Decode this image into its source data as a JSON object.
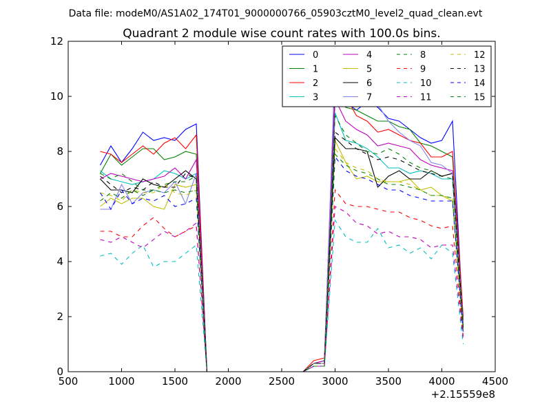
{
  "suptitle": "Data file: modeM0/AS1A02_174T01_9000000766_05903cztM0_level2_quad_clean.evt",
  "chart_data": {
    "type": "line",
    "title": "Quadrant 2 module wise count rates with 100.0s bins.",
    "xlabel": "",
    "ylabel": "",
    "x_offset_label": "+2.15559e8",
    "xlim": [
      500,
      4500
    ],
    "ylim": [
      0,
      12
    ],
    "xticks": [
      500,
      1000,
      1500,
      2000,
      2500,
      3000,
      3500,
      4000,
      4500
    ],
    "yticks": [
      0,
      2,
      4,
      6,
      8,
      10,
      12
    ],
    "grid": false,
    "legend_position": "top-right",
    "x": [
      800,
      900,
      1000,
      1100,
      1200,
      1300,
      1400,
      1500,
      1600,
      1700,
      1800,
      1900,
      2000,
      2100,
      2200,
      2300,
      2400,
      2500,
      2600,
      2700,
      2800,
      2900,
      3000,
      3100,
      3200,
      3300,
      3400,
      3500,
      3600,
      3700,
      3800,
      3900,
      4000,
      4100,
      4200
    ],
    "series": [
      {
        "name": "0",
        "color": "#0000ff",
        "dash": "solid",
        "values": [
          7.5,
          8.2,
          7.6,
          8.1,
          8.7,
          8.4,
          8.5,
          8.4,
          8.8,
          9.0,
          0,
          0,
          0,
          0,
          0,
          0,
          0,
          0,
          0,
          0,
          0.3,
          0.4,
          10.2,
          9.8,
          9.5,
          9.8,
          9.6,
          9.2,
          9.1,
          8.8,
          8.5,
          8.3,
          8.4,
          9.1,
          1.7
        ]
      },
      {
        "name": "1",
        "color": "#008000",
        "dash": "solid",
        "values": [
          7.2,
          7.9,
          7.5,
          7.8,
          8.1,
          8.1,
          7.7,
          7.8,
          8.0,
          7.9,
          0,
          0,
          0,
          0,
          0,
          0,
          0,
          0,
          0,
          0,
          0.3,
          0.4,
          10.0,
          9.6,
          9.5,
          9.3,
          9.1,
          9.1,
          8.9,
          8.8,
          8.3,
          8.2,
          8.0,
          7.8,
          1.9
        ]
      },
      {
        "name": "2",
        "color": "#ff0000",
        "dash": "solid",
        "values": [
          8.0,
          7.9,
          7.6,
          7.9,
          8.2,
          7.9,
          8.3,
          8.5,
          8.1,
          8.6,
          0,
          0,
          0,
          0,
          0,
          0,
          0,
          0,
          0,
          0,
          0.4,
          0.5,
          11.0,
          10.0,
          9.3,
          9.1,
          8.7,
          8.8,
          8.6,
          8.4,
          8.3,
          7.8,
          7.8,
          8.0,
          2.0
        ]
      },
      {
        "name": "3",
        "color": "#00bfbf",
        "dash": "solid",
        "values": [
          7.3,
          7.0,
          6.9,
          6.8,
          6.9,
          7.0,
          7.3,
          7.2,
          7.0,
          7.2,
          0,
          0,
          0,
          0,
          0,
          0,
          0,
          0,
          0,
          0,
          0.3,
          0.4,
          9.4,
          8.4,
          8.3,
          8.1,
          7.8,
          7.4,
          7.4,
          7.2,
          7.3,
          7.2,
          7.0,
          7.0,
          1.6
        ]
      },
      {
        "name": "4",
        "color": "#bf00bf",
        "dash": "solid",
        "values": [
          7.0,
          7.2,
          7.1,
          7.0,
          6.9,
          7.0,
          7.1,
          7.4,
          7.0,
          7.7,
          0,
          0,
          0,
          0,
          0,
          0,
          0,
          0,
          0,
          0,
          0.3,
          0.4,
          9.9,
          9.1,
          8.8,
          8.6,
          8.2,
          8.3,
          8.2,
          8.1,
          7.7,
          7.5,
          7.4,
          7.3,
          1.8
        ]
      },
      {
        "name": "5",
        "color": "#bfbf00",
        "dash": "solid",
        "values": [
          6.0,
          6.3,
          6.1,
          6.3,
          6.3,
          6.0,
          5.9,
          6.8,
          6.7,
          6.8,
          0,
          0,
          0,
          0,
          0,
          0,
          0,
          0,
          0,
          0,
          0.3,
          0.3,
          8.4,
          7.6,
          7.0,
          7.1,
          6.9,
          6.9,
          6.9,
          7.0,
          6.6,
          6.7,
          6.4,
          6.2,
          1.5
        ]
      },
      {
        "name": "6",
        "color": "#000000",
        "dash": "solid",
        "values": [
          7.0,
          6.6,
          6.6,
          6.5,
          7.0,
          6.8,
          6.7,
          7.0,
          7.3,
          7.0,
          0,
          0,
          0,
          0,
          0,
          0,
          0,
          0,
          0,
          0,
          0.3,
          0.3,
          8.5,
          8.1,
          8.1,
          8.0,
          6.7,
          7.1,
          7.3,
          7.0,
          7.0,
          7.3,
          7.1,
          7.2,
          1.6
        ]
      },
      {
        "name": "7",
        "color": "#8080ee",
        "dash": "solid",
        "values": [
          5.9,
          5.9,
          6.8,
          6.1,
          6.5,
          6.6,
          6.5,
          6.9,
          6.1,
          7.2,
          0,
          0,
          0,
          0,
          0,
          0,
          0,
          0,
          0,
          0,
          0.3,
          0.3,
          11.2,
          10.5,
          10.1,
          10.0,
          9.7,
          9.1,
          8.7,
          8.4,
          8.2,
          7.6,
          7.5,
          7.2,
          1.7
        ]
      },
      {
        "name": "8",
        "color": "#008000",
        "dash": "dashed",
        "values": [
          7.2,
          7.0,
          7.2,
          6.9,
          6.6,
          6.6,
          6.8,
          6.9,
          6.9,
          7.1,
          0,
          0,
          0,
          0,
          0,
          0,
          0,
          0,
          0,
          0,
          0.3,
          0.3,
          9.3,
          8.6,
          8.3,
          8.0,
          7.9,
          8.1,
          7.9,
          7.6,
          7.4,
          7.3,
          7.1,
          7.0,
          1.7
        ]
      },
      {
        "name": "9",
        "color": "#ff0000",
        "dash": "dashed",
        "values": [
          5.1,
          5.1,
          4.9,
          4.9,
          5.3,
          5.6,
          5.2,
          4.9,
          5.1,
          5.3,
          0,
          0,
          0,
          0,
          0,
          0,
          0,
          0,
          0,
          0,
          0.2,
          0.2,
          6.6,
          6.1,
          6.0,
          6.0,
          5.9,
          5.8,
          5.8,
          5.6,
          5.5,
          5.3,
          5.2,
          5.3,
          1.3
        ]
      },
      {
        "name": "10",
        "color": "#00bfbf",
        "dash": "dashed",
        "values": [
          4.2,
          4.3,
          3.9,
          4.3,
          4.6,
          3.8,
          4.0,
          4.0,
          4.3,
          4.6,
          0,
          0,
          0,
          0,
          0,
          0,
          0,
          0,
          0,
          0,
          0.2,
          0.2,
          5.5,
          4.9,
          4.7,
          4.7,
          5.2,
          4.5,
          4.6,
          4.3,
          4.5,
          4.1,
          4.6,
          4.3,
          1.0
        ]
      },
      {
        "name": "11",
        "color": "#bf00bf",
        "dash": "dashed",
        "values": [
          4.8,
          4.7,
          4.9,
          4.7,
          4.5,
          4.8,
          5.1,
          4.9,
          5.1,
          5.4,
          0,
          0,
          0,
          0,
          0,
          0,
          0,
          0,
          0,
          0,
          0.2,
          0.2,
          6.0,
          5.8,
          5.4,
          5.3,
          5.0,
          5.1,
          4.9,
          4.9,
          4.8,
          4.5,
          4.6,
          4.6,
          1.2
        ]
      },
      {
        "name": "12",
        "color": "#bfbf00",
        "dash": "dashed",
        "values": [
          6.5,
          6.4,
          6.2,
          6.6,
          6.5,
          6.5,
          6.8,
          6.5,
          6.4,
          6.6,
          0,
          0,
          0,
          0,
          0,
          0,
          0,
          0,
          0,
          0,
          0.3,
          0.3,
          8.1,
          7.6,
          7.4,
          7.3,
          7.0,
          6.9,
          6.9,
          6.8,
          6.6,
          6.4,
          6.4,
          6.3,
          1.5
        ]
      },
      {
        "name": "13",
        "color": "#000000",
        "dash": "dashed",
        "values": [
          7.1,
          6.8,
          6.5,
          6.7,
          6.6,
          6.9,
          6.7,
          6.7,
          7.2,
          7.0,
          0,
          0,
          0,
          0,
          0,
          0,
          0,
          0,
          0,
          0,
          0.3,
          0.3,
          8.7,
          8.4,
          8.1,
          7.9,
          7.7,
          7.8,
          7.7,
          7.5,
          7.3,
          7.2,
          7.1,
          7.2,
          1.6
        ]
      },
      {
        "name": "14",
        "color": "#0000ff",
        "dash": "dashed",
        "values": [
          6.5,
          5.9,
          6.6,
          6.1,
          6.3,
          6.2,
          6.4,
          6.0,
          6.1,
          6.3,
          0,
          0,
          0,
          0,
          0,
          0,
          0,
          0,
          0,
          0,
          0.2,
          0.2,
          7.8,
          7.3,
          7.1,
          7.0,
          6.8,
          6.6,
          6.6,
          6.4,
          6.3,
          6.2,
          6.2,
          6.2,
          1.4
        ]
      },
      {
        "name": "15",
        "color": "#008000",
        "dash": "dashed",
        "values": [
          6.2,
          6.5,
          6.3,
          6.6,
          6.4,
          6.6,
          6.5,
          6.6,
          6.5,
          6.6,
          0,
          0,
          0,
          0,
          0,
          0,
          0,
          0,
          0,
          0,
          0.2,
          0.2,
          7.9,
          7.5,
          7.3,
          7.2,
          7.0,
          6.8,
          6.8,
          6.7,
          6.6,
          6.4,
          6.4,
          6.3,
          1.5
        ]
      }
    ]
  }
}
